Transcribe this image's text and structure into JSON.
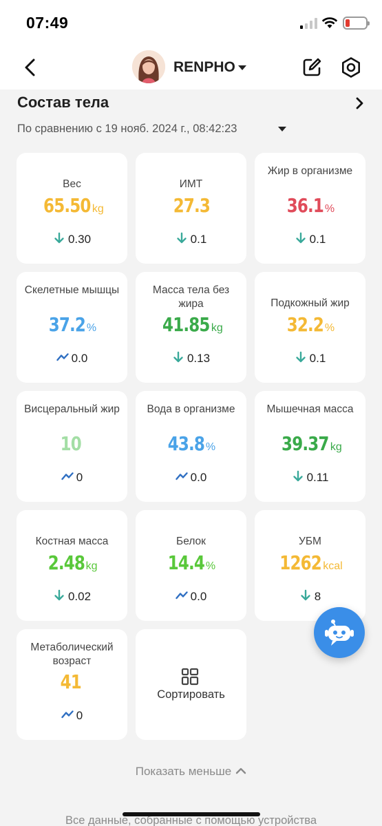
{
  "status_bar": {
    "time": "07:49"
  },
  "nav": {
    "user_name": "RENPHO"
  },
  "section": {
    "title": "Состав тела",
    "compare_text": "По сравнению с 19 нояб. 2024 г., 08:42:23"
  },
  "colors": {
    "orange": "#f4b935",
    "red": "#e04b5a",
    "blue": "#4aa3e8",
    "green": "#3aaa4a",
    "light_green": "#a3dea5",
    "bright_green": "#59c83a",
    "teal_arrow": "#39a99a",
    "blue_wave": "#2f6fc2",
    "fab_blue": "#3a8ee8"
  },
  "metrics": [
    {
      "label": "Вес",
      "value": "65.50",
      "unit": "kg",
      "delta": "0.30",
      "trend": "down",
      "color": "#f4b935"
    },
    {
      "label": "ИМТ",
      "value": "27.3",
      "unit": "",
      "delta": "0.1",
      "trend": "down",
      "color": "#f4b935"
    },
    {
      "label": "Жир в организме",
      "value": "36.1",
      "unit": "%",
      "delta": "0.1",
      "trend": "down",
      "color": "#e04b5a"
    },
    {
      "label": "Скелетные мышцы",
      "value": "37.2",
      "unit": "%",
      "delta": "0.0",
      "trend": "flat",
      "color": "#4aa3e8"
    },
    {
      "label": "Масса тела без жира",
      "value": "41.85",
      "unit": "kg",
      "delta": "0.13",
      "trend": "down",
      "color": "#3aaa4a"
    },
    {
      "label": "Подкожный жир",
      "value": "32.2",
      "unit": "%",
      "delta": "0.1",
      "trend": "down",
      "color": "#f4b935"
    },
    {
      "label": "Висцеральный жир",
      "value": "10",
      "unit": "",
      "delta": "0",
      "trend": "flat",
      "color": "#a3dea5"
    },
    {
      "label": "Вода в организме",
      "value": "43.8",
      "unit": "%",
      "delta": "0.0",
      "trend": "flat",
      "color": "#4aa3e8"
    },
    {
      "label": "Мышечная масса",
      "value": "39.37",
      "unit": "kg",
      "delta": "0.11",
      "trend": "down",
      "color": "#3aaa4a"
    },
    {
      "label": "Костная масса",
      "value": "2.48",
      "unit": "kg",
      "delta": "0.02",
      "trend": "down",
      "color": "#59c83a"
    },
    {
      "label": "Белок",
      "value": "14.4",
      "unit": "%",
      "delta": "0.0",
      "trend": "flat",
      "color": "#59c83a"
    },
    {
      "label": "УБМ",
      "value": "1262",
      "unit": "kcal",
      "delta": "8",
      "trend": "down",
      "color": "#f4b935"
    },
    {
      "label": "Метаболический возраст",
      "value": "41",
      "unit": "",
      "delta": "0",
      "trend": "flat",
      "color": "#f4b935"
    }
  ],
  "sort_label": "Сортировать",
  "show_less": "Показать меньше",
  "footer_text": "Все данные, собранные с помощью устройства"
}
